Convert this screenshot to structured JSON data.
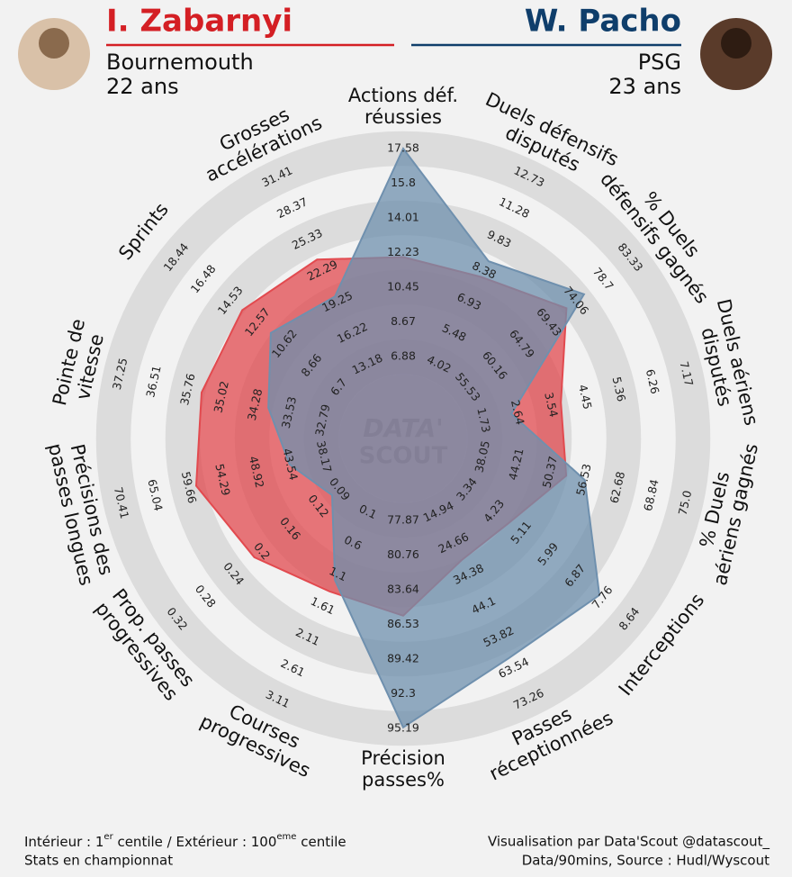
{
  "chart_data": {
    "type": "radar",
    "logo": [
      "DATA'",
      "SCOUT"
    ],
    "axes": [
      {
        "label": [
          "Actions déf.",
          "réussies"
        ],
        "ticks": [
          6.88,
          8.67,
          10.45,
          12.23,
          14.01,
          15.8,
          17.58
        ]
      },
      {
        "label": [
          "Duels défensifs",
          "disputés"
        ],
        "ticks": [
          4.02,
          5.48,
          6.93,
          8.38,
          9.83,
          11.28,
          12.73
        ]
      },
      {
        "label": [
          "% Duels",
          "défensifs gagnés"
        ],
        "ticks": [
          55.53,
          60.16,
          64.79,
          69.43,
          74.06,
          78.7,
          83.33
        ]
      },
      {
        "label": [
          "Duels aériens",
          "disputés"
        ],
        "ticks": [
          1.73,
          2.64,
          3.54,
          4.45,
          5.36,
          6.26,
          7.17
        ]
      },
      {
        "label": [
          "% Duels",
          "aériens gagnés"
        ],
        "ticks": [
          38.05,
          44.21,
          50.37,
          56.53,
          62.68,
          68.84,
          {
            "value": 75,
            "label": "75.0"
          }
        ]
      },
      {
        "label": [
          "Interceptions"
        ],
        "ticks": [
          3.34,
          4.23,
          5.11,
          5.99,
          6.87,
          7.76,
          8.64
        ]
      },
      {
        "label": [
          "Passes",
          "réceptionnées"
        ],
        "ticks": [
          14.94,
          24.66,
          34.38,
          44.1,
          53.82,
          63.54,
          73.26
        ]
      },
      {
        "label": [
          "Précision",
          "passes%"
        ],
        "ticks": [
          77.87,
          80.76,
          83.64,
          86.53,
          89.42,
          92.3,
          95.19
        ]
      },
      {
        "label": [
          "Courses",
          "progressives"
        ],
        "ticks": [
          0.1,
          0.6,
          1.1,
          1.61,
          2.11,
          2.61,
          3.11
        ]
      },
      {
        "label": [
          "Prop. passes",
          "progressives"
        ],
        "ticks": [
          0.09,
          0.12,
          0.16,
          0.2,
          0.24,
          0.28,
          0.32
        ]
      },
      {
        "label": [
          "Précisions des",
          "passes longues"
        ],
        "ticks": [
          38.17,
          43.54,
          48.92,
          54.29,
          59.66,
          65.04,
          70.41
        ]
      },
      {
        "label": [
          "Pointe de",
          "vitesse"
        ],
        "ticks": [
          32.79,
          33.53,
          34.28,
          35.02,
          35.76,
          36.51,
          37.25
        ]
      },
      {
        "label": [
          "Sprints"
        ],
        "ticks": [
          6.7,
          8.66,
          10.62,
          12.57,
          14.53,
          16.48,
          18.44
        ]
      },
      {
        "label": [
          "Grosses",
          "accélérations"
        ],
        "ticks": [
          13.18,
          16.22,
          19.25,
          22.29,
          25.33,
          28.37,
          31.41
        ]
      }
    ],
    "series": [
      {
        "name": "I. Zabarnyi",
        "club": "Bournemouth",
        "age": "22 ans",
        "color": "#e24a4f",
        "title_color": "#d41f24",
        "values": [
          12.0,
          8.1,
          72.5,
          3.82,
          53.2,
          4.7,
          29.8,
          85.8,
          1.37,
          0.21,
          58.4,
          35.47,
          13.7,
          23.4
        ]
      },
      {
        "name": "W. Pacho",
        "club": "PSG",
        "age": "23 ans",
        "color": "#6f90ae",
        "title_color": "#0f3e6b",
        "values": [
          17.58,
          8.83,
          75.5,
          2.49,
          56.6,
          7.65,
          60.3,
          95.1,
          1.19,
          0.1,
          43.54,
          34.0,
          11.64,
          19.8
        ]
      }
    ],
    "footer_left": [
      [
        "Intérieur : 1",
        "er",
        " centile / Extérieur : 100",
        "eme",
        " centile"
      ],
      "Stats en championnat"
    ],
    "footer_right": [
      "Visualisation par Data'Scout @datascout_",
      "Data/90mins, Source : Hudl/Wyscout"
    ]
  }
}
